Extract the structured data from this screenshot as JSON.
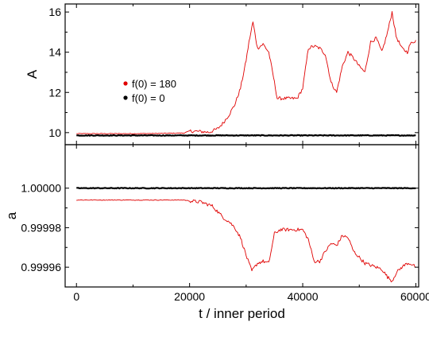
{
  "chart_data": {
    "type": "line",
    "shared_x": {
      "label": "t / inner period",
      "range": [
        -2000,
        60500
      ],
      "ticks": [
        0,
        20000,
        40000,
        60000
      ],
      "tick_labels": [
        "0",
        "20000",
        "40000",
        "60000"
      ]
    },
    "panels": [
      {
        "id": "top",
        "ylabel": "A",
        "ylim": [
          9.4,
          16.4
        ],
        "yticks": [
          10,
          12,
          14,
          16
        ],
        "ytick_labels": [
          "10",
          "12",
          "14",
          "16"
        ],
        "legend": {
          "placement": "center-left",
          "entries": [
            {
              "label": "f(0) = 180",
              "color": "#e00000"
            },
            {
              "label": "f(0) = 0",
              "color": "#000000"
            }
          ]
        },
        "series": [
          {
            "name": "f(0) = 180",
            "color": "#e00000",
            "x": [
              0,
              5000,
              10000,
              15000,
              19000,
              20000,
              22000,
              23500,
              25000,
              26000,
              27000,
              28000,
              29000,
              30000,
              30500,
              31200,
              32000,
              33000,
              34000,
              35000,
              35500,
              37000,
              39000,
              40000,
              41000,
              42000,
              43000,
              44000,
              45000,
              46000,
              47000,
              48000,
              49000,
              50000,
              51000,
              52000,
              53000,
              54000,
              55000,
              55800,
              56500,
              57500,
              58500,
              59000,
              60000
            ],
            "y": [
              9.95,
              9.95,
              9.95,
              9.96,
              9.98,
              10.08,
              10.05,
              10.02,
              10.2,
              10.5,
              10.9,
              11.4,
              12.2,
              13.6,
              14.5,
              15.5,
              14.2,
              14.4,
              14.0,
              12.5,
              11.7,
              11.7,
              11.7,
              12.2,
              14.2,
              14.3,
              14.2,
              13.9,
              12.5,
              12.0,
              13.3,
              14.0,
              13.7,
              13.3,
              13.0,
              14.5,
              14.7,
              14.0,
              15.0,
              16.0,
              14.8,
              14.2,
              14.0,
              14.4,
              14.6
            ]
          },
          {
            "name": "f(0) = 0",
            "color": "#000000",
            "x": [
              0,
              60000
            ],
            "y": [
              9.86,
              9.86
            ]
          }
        ]
      },
      {
        "id": "bottom",
        "ylabel": "a",
        "ylim": [
          0.99995,
          1.000022
        ],
        "yticks": [
          0.99996,
          0.99998,
          1.0
        ],
        "ytick_labels": [
          "0.99996",
          "0.99998",
          "1.00000"
        ],
        "series": [
          {
            "name": "f(0) = 180",
            "color": "#e00000",
            "x": [
              0,
              5000,
              10000,
              15000,
              19000,
              20000,
              22000,
              24000,
              25000,
              26000,
              27000,
              28000,
              29000,
              30000,
              31000,
              32000,
              33000,
              34000,
              35000,
              36000,
              38000,
              40000,
              41000,
              42000,
              43000,
              44000,
              45000,
              46000,
              47000,
              48000,
              49000,
              50000,
              51000,
              52000,
              53000,
              54000,
              55000,
              55800,
              56500,
              57500,
              58500,
              59000,
              60000
            ],
            "y": [
              0.999994,
              0.999994,
              0.999994,
              0.999994,
              0.999994,
              0.9999935,
              0.999993,
              0.999991,
              0.999988,
              0.999985,
              0.999983,
              0.99998,
              0.999975,
              0.999966,
              0.999958,
              0.999962,
              0.999963,
              0.999962,
              0.999977,
              0.999979,
              0.999979,
              0.999979,
              0.999974,
              0.999963,
              0.999963,
              0.999968,
              0.999972,
              0.999971,
              0.999976,
              0.999975,
              0.999968,
              0.999965,
              0.999962,
              0.999961,
              0.99996,
              0.999959,
              0.999955,
              0.999953,
              0.999957,
              0.99996,
              0.999962,
              0.999962,
              0.99996
            ]
          },
          {
            "name": "f(0) = 0",
            "color": "#000000",
            "x": [
              0,
              60000
            ],
            "y": [
              1.0,
              1.0
            ]
          }
        ]
      }
    ]
  }
}
